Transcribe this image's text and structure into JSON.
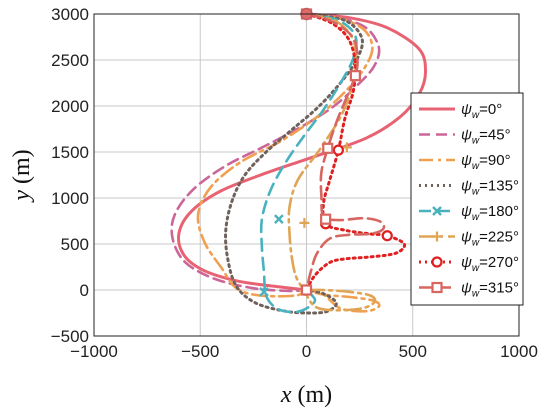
{
  "chart_data": {
    "type": "line",
    "xlabel_var": "x",
    "xlabel_unit": "(m)",
    "ylabel_var": "y",
    "ylabel_unit": "(m)",
    "xlim": [
      -1000,
      1000
    ],
    "ylim": [
      -500,
      3000
    ],
    "xticks": [
      -1000,
      -500,
      0,
      500,
      1000
    ],
    "yticks": [
      -500,
      0,
      500,
      1000,
      1500,
      2000,
      2500,
      3000
    ],
    "grid": true,
    "legend_position": "right",
    "start_point": [
      0,
      3000
    ],
    "series": [
      {
        "name": "ψw=0°",
        "legend_main": "ψ",
        "legend_sub": "w",
        "legend_rest": "=0°",
        "color": "#e86272",
        "dash": "",
        "width": 3,
        "marker": "none",
        "points": [
          [
            0,
            3000
          ],
          [
            200,
            2960
          ],
          [
            380,
            2850
          ],
          [
            530,
            2620
          ],
          [
            560,
            2370
          ],
          [
            530,
            2130
          ],
          [
            440,
            1880
          ],
          [
            280,
            1650
          ],
          [
            50,
            1460
          ],
          [
            -180,
            1280
          ],
          [
            -400,
            1080
          ],
          [
            -540,
            860
          ],
          [
            -600,
            620
          ],
          [
            -580,
            390
          ],
          [
            -490,
            220
          ],
          [
            -330,
            100
          ],
          [
            -150,
            40
          ],
          [
            0,
            0
          ]
        ]
      },
      {
        "name": "ψw=45°",
        "legend_main": "ψ",
        "legend_sub": "w",
        "legend_rest": "=45°",
        "color": "#cc6699",
        "dash": "11,6",
        "width": 2.6,
        "marker": "none",
        "points": [
          [
            0,
            3000
          ],
          [
            150,
            2960
          ],
          [
            280,
            2850
          ],
          [
            340,
            2640
          ],
          [
            320,
            2440
          ],
          [
            250,
            2250
          ],
          [
            130,
            2000
          ],
          [
            -20,
            1780
          ],
          [
            -200,
            1560
          ],
          [
            -380,
            1350
          ],
          [
            -530,
            1100
          ],
          [
            -620,
            820
          ],
          [
            -630,
            560
          ],
          [
            -570,
            300
          ],
          [
            -430,
            120
          ],
          [
            -250,
            20
          ],
          [
            -80,
            -10
          ],
          [
            0,
            0
          ]
        ]
      },
      {
        "name": "ψw=90°",
        "legend_main": "ψ",
        "legend_sub": "w",
        "legend_rest": "=90°",
        "color": "#f0a050",
        "dash": "14,5,3,5",
        "width": 2.6,
        "marker": "none",
        "points": [
          [
            0,
            3000
          ],
          [
            160,
            2950
          ],
          [
            270,
            2830
          ],
          [
            310,
            2640
          ],
          [
            280,
            2440
          ],
          [
            200,
            2200
          ],
          [
            60,
            1900
          ],
          [
            -120,
            1620
          ],
          [
            -310,
            1390
          ],
          [
            -450,
            1120
          ],
          [
            -510,
            820
          ],
          [
            -480,
            520
          ],
          [
            -400,
            240
          ],
          [
            -330,
            20
          ],
          [
            -220,
            -60
          ],
          [
            -50,
            -60
          ],
          [
            0,
            0
          ],
          [
            80,
            -50
          ],
          [
            160,
            -200
          ],
          [
            280,
            -230
          ],
          [
            340,
            -180
          ],
          [
            320,
            -120
          ],
          [
            220,
            -80
          ],
          [
            80,
            -50
          ],
          [
            0,
            0
          ]
        ]
      },
      {
        "name": "ψw=135°",
        "legend_main": "ψ",
        "legend_sub": "w",
        "legend_rest": "=135°",
        "color": "#6f625d",
        "dash": "2,4",
        "width": 3,
        "marker": "none",
        "points": [
          [
            0,
            3000
          ],
          [
            180,
            2930
          ],
          [
            260,
            2740
          ],
          [
            240,
            2520
          ],
          [
            170,
            2280
          ],
          [
            60,
            2000
          ],
          [
            -70,
            1740
          ],
          [
            -190,
            1500
          ],
          [
            -290,
            1250
          ],
          [
            -350,
            970
          ],
          [
            -380,
            650
          ],
          [
            -370,
            330
          ],
          [
            -330,
            40
          ],
          [
            -240,
            -140
          ],
          [
            -100,
            -230
          ],
          [
            20,
            -250
          ],
          [
            100,
            -230
          ],
          [
            140,
            -140
          ],
          [
            80,
            -40
          ],
          [
            0,
            0
          ]
        ]
      },
      {
        "name": "ψw=180°",
        "legend_main": "ψ",
        "legend_sub": "w",
        "legend_rest": "=180°",
        "color": "#49b2bf",
        "dash": "12,7",
        "width": 2.6,
        "marker": "x",
        "marker_points": [
          [
            -130,
            770
          ],
          [
            -200,
            -20
          ]
        ],
        "points": [
          [
            0,
            3000
          ],
          [
            150,
            2930
          ],
          [
            230,
            2760
          ],
          [
            220,
            2520
          ],
          [
            160,
            2250
          ],
          [
            80,
            1960
          ],
          [
            -10,
            1680
          ],
          [
            -100,
            1380
          ],
          [
            -170,
            1080
          ],
          [
            -210,
            770
          ],
          [
            -210,
            470
          ],
          [
            -200,
            190
          ],
          [
            -190,
            -60
          ],
          [
            -140,
            -200
          ],
          [
            -60,
            -240
          ],
          [
            0,
            -200
          ],
          [
            40,
            -110
          ],
          [
            0,
            0
          ]
        ]
      },
      {
        "name": "ψw=225°",
        "legend_main": "ψ",
        "legend_sub": "w",
        "legend_rest": "=225°",
        "color": "#e0a554",
        "dash": "16,5,3,5",
        "width": 2.6,
        "marker": "plus",
        "marker_points": [
          [
            0,
            3000
          ],
          [
            190,
            1550
          ],
          [
            -10,
            730
          ],
          [
            -10,
            -10
          ]
        ],
        "points": [
          [
            0,
            3000
          ],
          [
            140,
            2920
          ],
          [
            220,
            2720
          ],
          [
            230,
            2460
          ],
          [
            210,
            2180
          ],
          [
            160,
            1880
          ],
          [
            60,
            1520
          ],
          [
            -40,
            1200
          ],
          [
            -80,
            900
          ],
          [
            -80,
            620
          ],
          [
            -70,
            370
          ],
          [
            -50,
            150
          ],
          [
            -10,
            -10
          ],
          [
            40,
            -180
          ],
          [
            130,
            -220
          ],
          [
            260,
            -200
          ],
          [
            320,
            -130
          ],
          [
            300,
            -60
          ],
          [
            200,
            -20
          ],
          [
            80,
            0
          ],
          [
            0,
            0
          ]
        ]
      },
      {
        "name": "ψw=270°",
        "legend_main": "ψ",
        "legend_sub": "w",
        "legend_rest": "=270°",
        "color": "#e02020",
        "dash": "2,4",
        "width": 3,
        "marker": "circle",
        "marker_points": [
          [
            0,
            3000
          ],
          [
            150,
            1520
          ],
          [
            90,
            720
          ],
          [
            380,
            590
          ],
          [
            0,
            0
          ]
        ],
        "points": [
          [
            0,
            3000
          ],
          [
            120,
            2900
          ],
          [
            200,
            2720
          ],
          [
            230,
            2450
          ],
          [
            220,
            2160
          ],
          [
            180,
            1860
          ],
          [
            150,
            1520
          ],
          [
            110,
            1200
          ],
          [
            80,
            940
          ],
          [
            90,
            720
          ],
          [
            180,
            650
          ],
          [
            300,
            610
          ],
          [
            380,
            590
          ],
          [
            460,
            500
          ],
          [
            420,
            400
          ],
          [
            300,
            360
          ],
          [
            190,
            340
          ],
          [
            110,
            300
          ],
          [
            40,
            160
          ],
          [
            0,
            0
          ]
        ]
      },
      {
        "name": "ψw=315°",
        "legend_main": "ψ",
        "legend_sub": "w",
        "legend_rest": "=315°",
        "color": "#d86660",
        "dash": "13,6",
        "width": 2.6,
        "marker": "square",
        "marker_points": [
          [
            0,
            3000
          ],
          [
            230,
            2330
          ],
          [
            100,
            1540
          ],
          [
            90,
            770
          ],
          [
            0,
            0
          ]
        ],
        "points": [
          [
            0,
            3000
          ],
          [
            120,
            2920
          ],
          [
            220,
            2740
          ],
          [
            240,
            2500
          ],
          [
            230,
            2330
          ],
          [
            190,
            2100
          ],
          [
            140,
            1820
          ],
          [
            100,
            1540
          ],
          [
            70,
            1280
          ],
          [
            70,
            1020
          ],
          [
            80,
            800
          ],
          [
            150,
            760
          ],
          [
            270,
            780
          ],
          [
            350,
            740
          ],
          [
            360,
            660
          ],
          [
            300,
            610
          ],
          [
            200,
            600
          ],
          [
            110,
            560
          ],
          [
            50,
            400
          ],
          [
            20,
            200
          ],
          [
            0,
            0
          ]
        ]
      }
    ]
  }
}
